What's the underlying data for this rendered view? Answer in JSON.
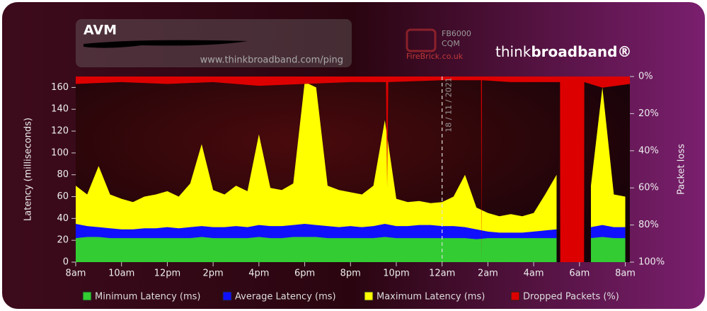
{
  "chart_data": {
    "type": "area",
    "title": "AVM",
    "subtitle": "www.thinkbroadband.com/ping",
    "branding": {
      "model": "FB6000",
      "product": "CQM",
      "vendor": "FireBrick.co.uk",
      "logo_think": "think",
      "logo_broadband": "broadband®"
    },
    "ylabel": "Latency (milliseconds)",
    "y2label": "Packet loss",
    "annotation": {
      "x": 16,
      "text": "18 / 11 / 2021"
    },
    "xlim": [
      0,
      24.2
    ],
    "xticks": [
      {
        "value": 0,
        "label": "8am"
      },
      {
        "value": 2,
        "label": "10am"
      },
      {
        "value": 4,
        "label": "12pm"
      },
      {
        "value": 6,
        "label": "2pm"
      },
      {
        "value": 8,
        "label": "4pm"
      },
      {
        "value": 10,
        "label": "6pm"
      },
      {
        "value": 12,
        "label": "8pm"
      },
      {
        "value": 14,
        "label": "10pm"
      },
      {
        "value": 16,
        "label": "12am"
      },
      {
        "value": 18,
        "label": "2am"
      },
      {
        "value": 20,
        "label": "4am"
      },
      {
        "value": 22,
        "label": "6am"
      },
      {
        "value": 24,
        "label": "8am"
      }
    ],
    "ylim": [
      0,
      170
    ],
    "yticks": [
      0,
      20,
      40,
      60,
      80,
      100,
      120,
      140,
      160
    ],
    "y2lim": [
      0,
      100
    ],
    "y2_inverted": true,
    "y2ticks": [
      {
        "value": 0,
        "label": "0%"
      },
      {
        "value": 20,
        "label": "20%"
      },
      {
        "value": 40,
        "label": "40%"
      },
      {
        "value": 60,
        "label": "60%"
      },
      {
        "value": 80,
        "label": "80%"
      },
      {
        "value": 100,
        "label": "100%"
      }
    ],
    "x": [
      0,
      0.5,
      1,
      1.5,
      2,
      2.5,
      3,
      3.5,
      4,
      4.5,
      5,
      5.5,
      6,
      6.5,
      7,
      7.5,
      8,
      8.5,
      9,
      9.5,
      10,
      10.5,
      11,
      11.5,
      12,
      12.5,
      13,
      13.5,
      14,
      14.5,
      15,
      15.5,
      16,
      16.5,
      17,
      17.5,
      18,
      18.5,
      19,
      19.5,
      20,
      20.5,
      21,
      21.5,
      22,
      22.5,
      23,
      23.5,
      24
    ],
    "series": [
      {
        "name": "Minimum Latency (ms)",
        "color": "#33cc33",
        "values": [
          22,
          23,
          23,
          22,
          22,
          22,
          22,
          22,
          22,
          22,
          22,
          23,
          22,
          22,
          22,
          22,
          23,
          22,
          22,
          23,
          23,
          23,
          22,
          22,
          22,
          22,
          22,
          23,
          22,
          22,
          22,
          22,
          22,
          22,
          22,
          21,
          22,
          22,
          22,
          22,
          22,
          22,
          22,
          null,
          null,
          22,
          23,
          22,
          22
        ]
      },
      {
        "name": "Average Latency (ms)",
        "color": "#1010ff",
        "values": [
          35,
          33,
          32,
          31,
          30,
          30,
          31,
          31,
          32,
          31,
          32,
          33,
          32,
          32,
          33,
          32,
          34,
          33,
          33,
          34,
          35,
          34,
          33,
          32,
          33,
          32,
          33,
          35,
          33,
          33,
          34,
          34,
          33,
          33,
          32,
          30,
          28,
          27,
          27,
          27,
          28,
          29,
          30,
          null,
          null,
          32,
          34,
          32,
          32
        ]
      },
      {
        "name": "Maximum Latency (ms)",
        "color": "#ffff00",
        "values": [
          70,
          62,
          88,
          62,
          58,
          55,
          60,
          62,
          65,
          60,
          72,
          108,
          66,
          62,
          70,
          65,
          117,
          68,
          66,
          72,
          165,
          160,
          70,
          66,
          64,
          62,
          70,
          130,
          58,
          55,
          56,
          54,
          55,
          60,
          80,
          50,
          45,
          42,
          44,
          42,
          45,
          62,
          80,
          null,
          null,
          70,
          160,
          62,
          60
        ]
      },
      {
        "name": "Dropped Packets (%)",
        "color": "#dd0000",
        "axis": "y2",
        "x": [
          0,
          2,
          4,
          6,
          8,
          10,
          12,
          13.55,
          13.6,
          13.65,
          16,
          17.7,
          17.72,
          17.74,
          19,
          21.15,
          21.16,
          22.2,
          22.21,
          23,
          24.2
        ],
        "values": [
          4,
          3,
          4,
          3,
          5,
          4,
          3,
          3,
          60,
          3,
          2,
          2,
          100,
          2,
          3,
          3,
          100,
          100,
          3,
          6,
          4
        ]
      }
    ]
  }
}
